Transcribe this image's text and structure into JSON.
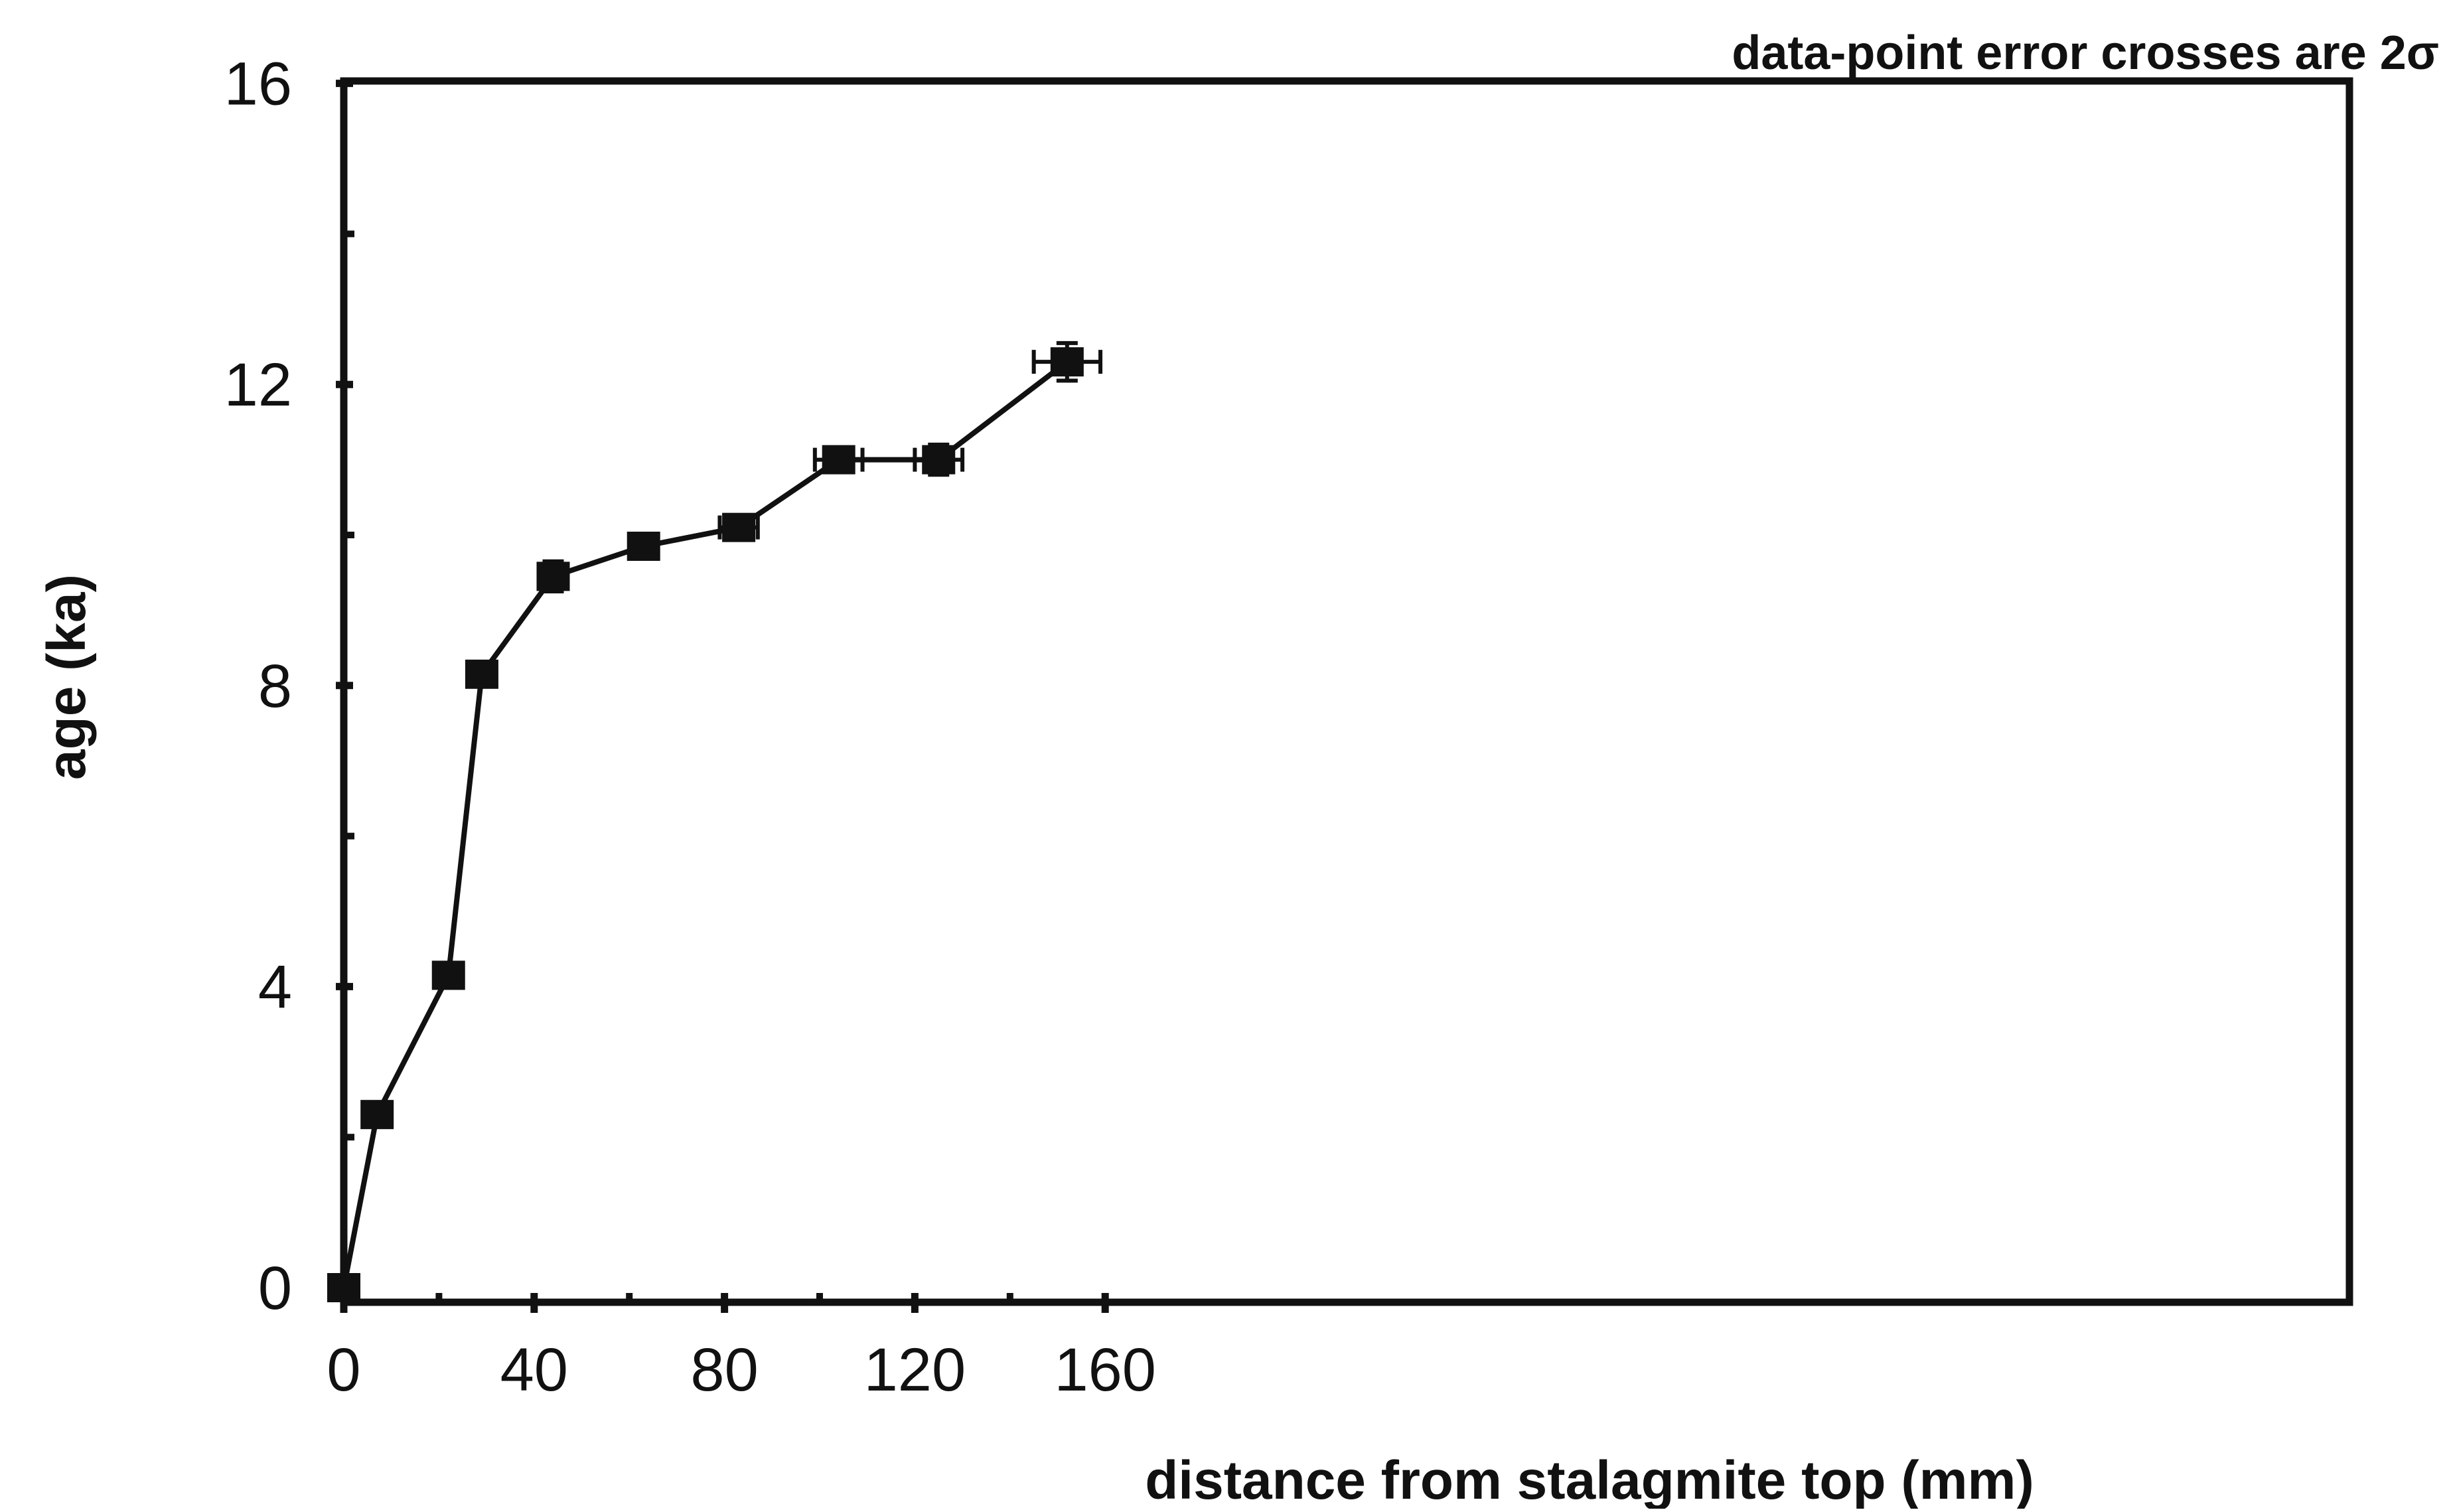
{
  "chart_data": {
    "type": "scatter",
    "title": "",
    "annotation": "data-point error crosses are 2σ",
    "xlabel": "distance from stalagmite top (mm)",
    "ylabel": "age (ka)",
    "xlim": [
      0,
      170
    ],
    "ylim": [
      0,
      16
    ],
    "x_major_ticks": [
      0,
      40,
      80,
      120,
      160
    ],
    "x_tick_labels": [
      "0",
      "40",
      "80",
      "120",
      "160"
    ],
    "x_minor_ticks": [
      20,
      60,
      100,
      140
    ],
    "y_major_ticks": [
      0,
      4,
      8,
      12,
      16
    ],
    "y_tick_labels": [
      "0",
      "4",
      "8",
      "12",
      "16"
    ],
    "y_minor_ticks": [
      2,
      6,
      10,
      14
    ],
    "grid": false,
    "connected": true,
    "marker": "square",
    "color": "#111111",
    "series": [
      {
        "points": [
          {
            "x": 0,
            "y": 0,
            "xerr": 0,
            "yerr": 0
          },
          {
            "x": 7,
            "y": 2.3,
            "xerr": 0,
            "yerr": 0
          },
          {
            "x": 22,
            "y": 4.15,
            "xerr": 0,
            "yerr": 0
          },
          {
            "x": 29,
            "y": 8.15,
            "xerr": 0,
            "yerr": 0
          },
          {
            "x": 44,
            "y": 9.45,
            "xerr": 2,
            "yerr": 0.2
          },
          {
            "x": 63,
            "y": 9.85,
            "xerr": 3,
            "yerr": 0
          },
          {
            "x": 83,
            "y": 10.1,
            "xerr": 4,
            "yerr": 0
          },
          {
            "x": 104,
            "y": 11.0,
            "xerr": 5,
            "yerr": 0
          },
          {
            "x": 125,
            "y": 11.0,
            "xerr": 5,
            "yerr": 0.2
          },
          {
            "x": 152,
            "y": 12.3,
            "xerr": 7,
            "yerr": 0.25
          }
        ]
      }
    ]
  }
}
